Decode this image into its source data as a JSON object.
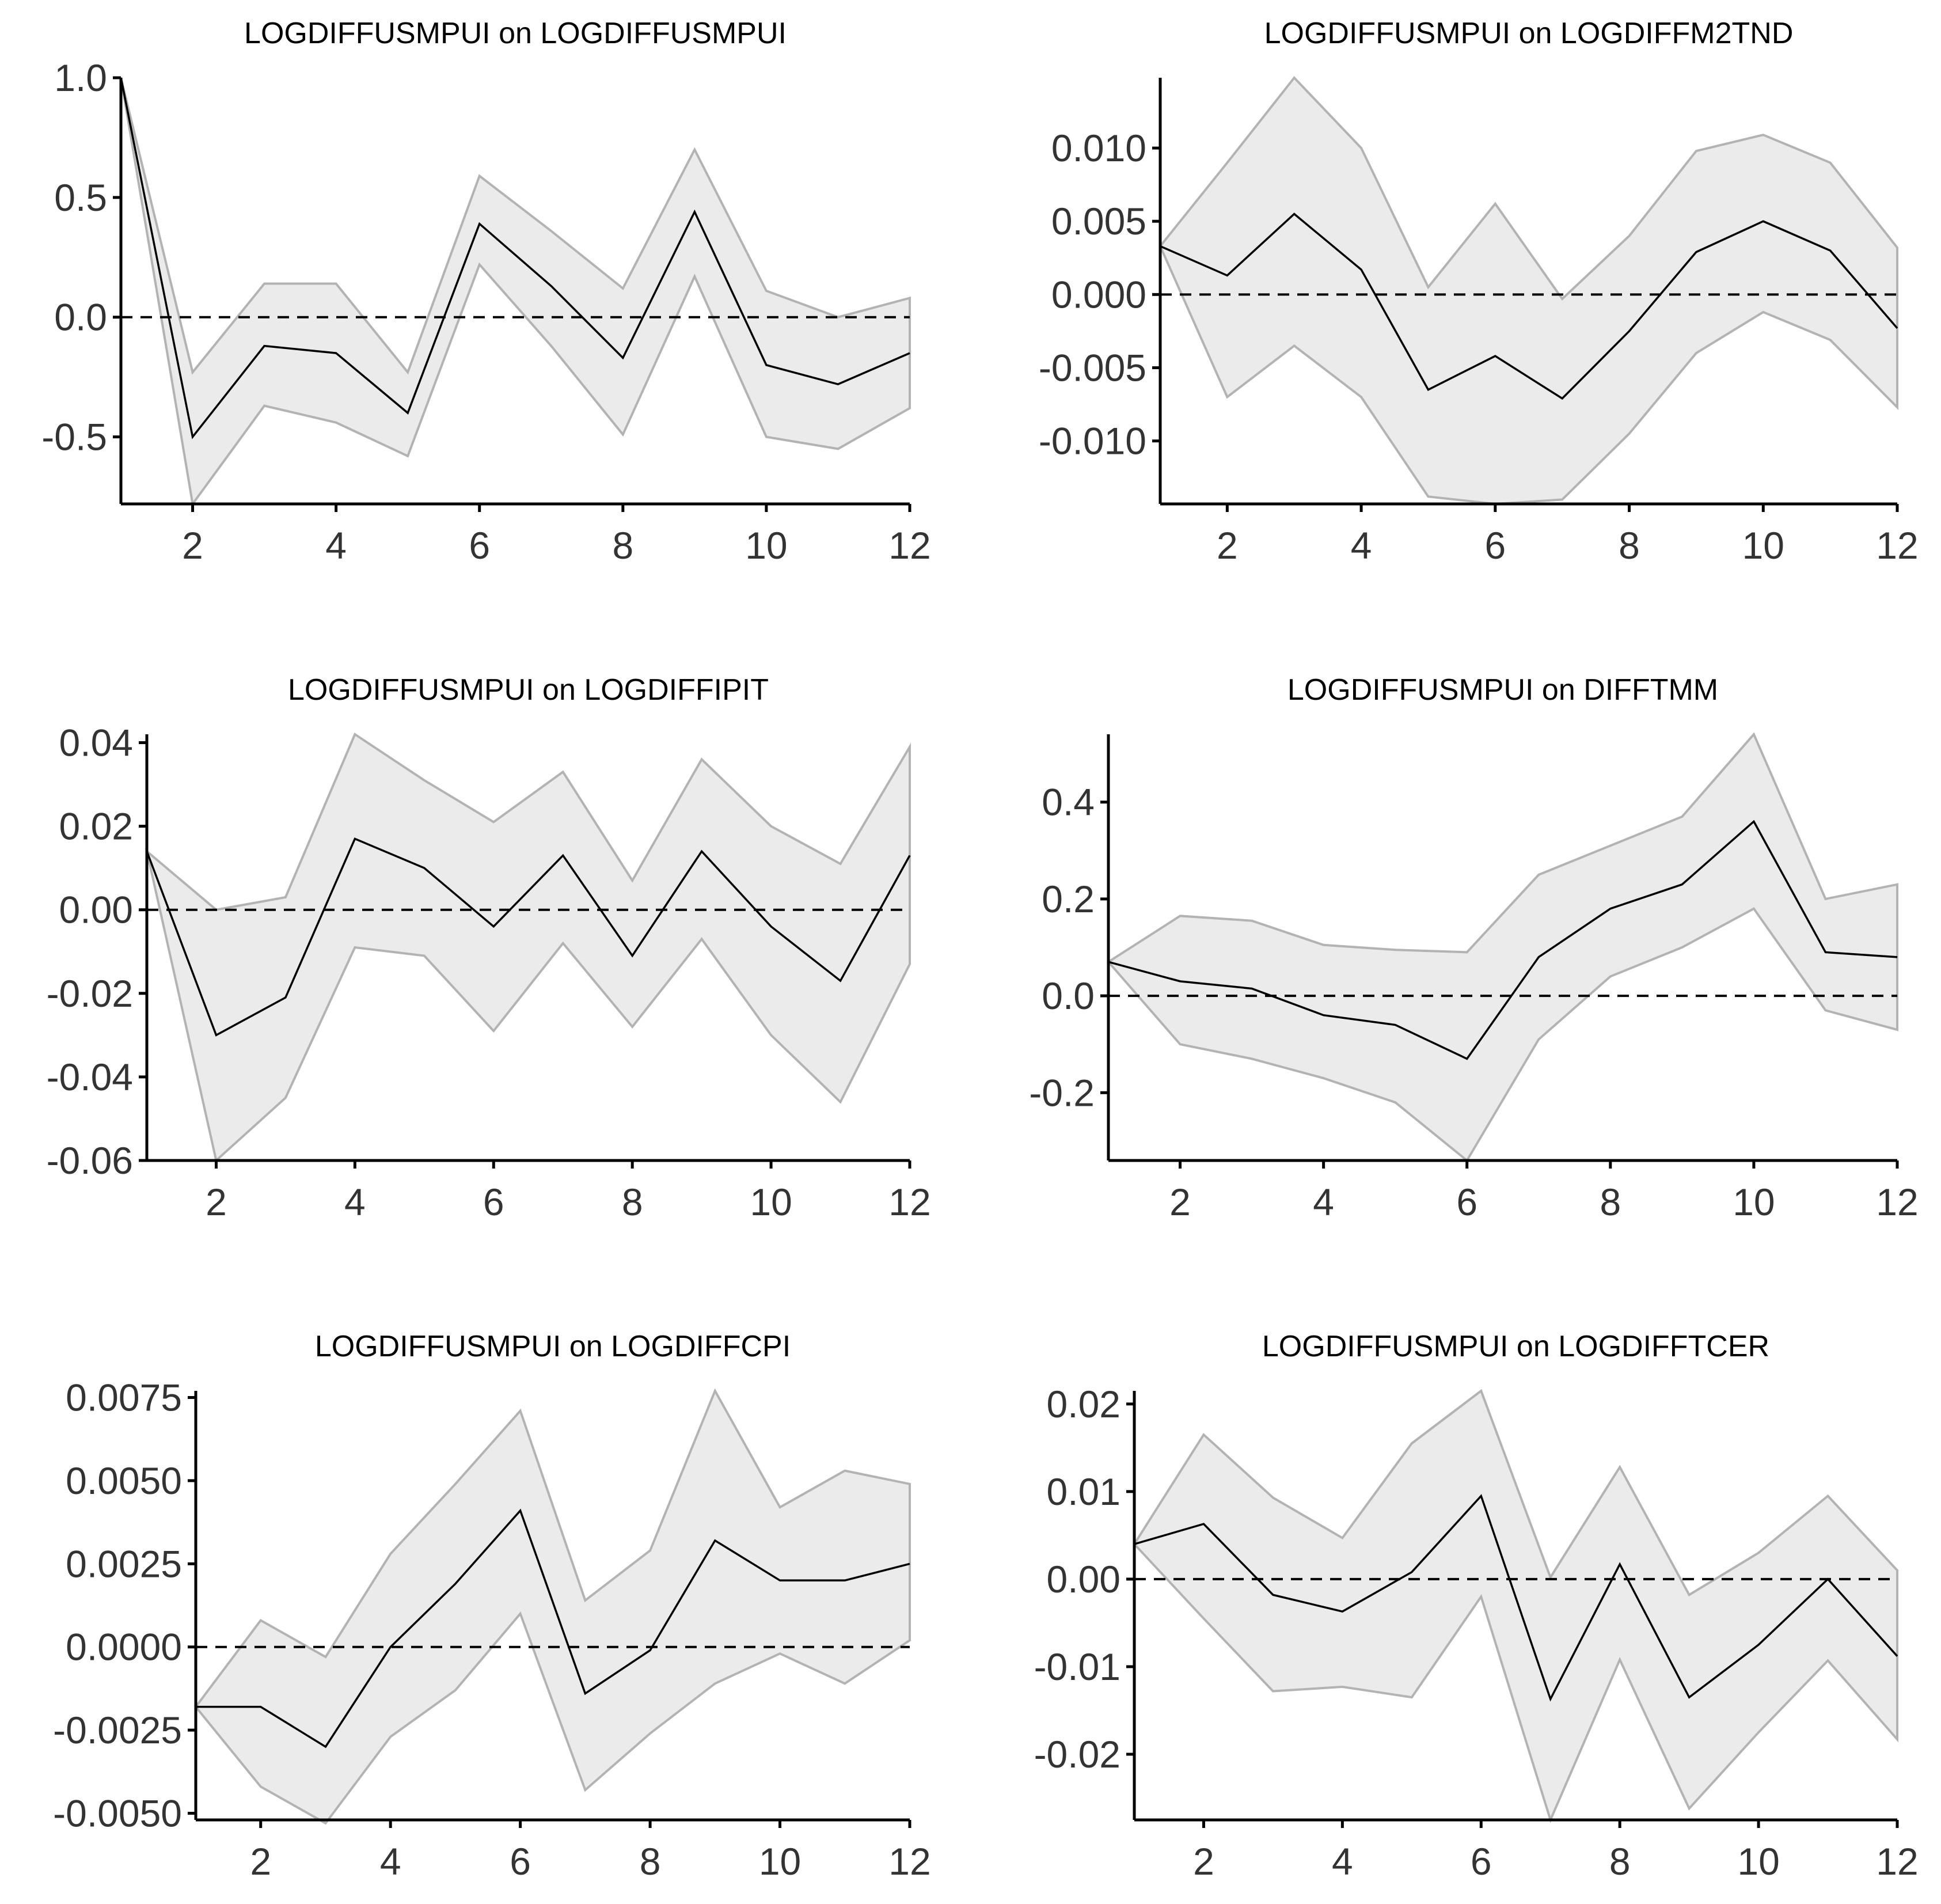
{
  "chart_data": [
    {
      "type": "line",
      "title": "LOGDIFFUSMPUI on LOGDIFFUSMPUI",
      "x": [
        1,
        2,
        3,
        4,
        5,
        6,
        7,
        8,
        9,
        10,
        11,
        12
      ],
      "xlim": [
        1,
        12
      ],
      "xticks": [
        2,
        4,
        6,
        8,
        10,
        12
      ],
      "xtick_labels": [
        "2",
        "4",
        "6",
        "8",
        "10",
        "12"
      ],
      "ylim": [
        -0.78,
        1.0
      ],
      "yticks": [
        1.0,
        0.5,
        0.0,
        -0.5
      ],
      "ytick_labels": [
        "1.0",
        "0.5",
        "0.0",
        "-0.5"
      ],
      "series": [
        {
          "name": "irf",
          "values": [
            1.0,
            -0.5,
            -0.12,
            -0.15,
            -0.4,
            0.39,
            0.13,
            -0.17,
            0.44,
            -0.2,
            -0.28,
            -0.15
          ]
        },
        {
          "name": "lower",
          "values": [
            1.0,
            -0.78,
            -0.37,
            -0.44,
            -0.58,
            0.22,
            -0.12,
            -0.49,
            0.17,
            -0.5,
            -0.55,
            -0.38
          ]
        },
        {
          "name": "upper",
          "values": [
            1.0,
            -0.23,
            0.14,
            0.14,
            -0.23,
            0.59,
            0.36,
            0.12,
            0.7,
            0.11,
            0.0,
            0.08
          ]
        }
      ]
    },
    {
      "type": "line",
      "title": "LOGDIFFUSMPUI on LOGDIFFM2TND",
      "x": [
        1,
        2,
        3,
        4,
        5,
        6,
        7,
        8,
        9,
        10,
        11,
        12
      ],
      "xlim": [
        1,
        12
      ],
      "xticks": [
        2,
        4,
        6,
        8,
        10,
        12
      ],
      "xtick_labels": [
        "2",
        "4",
        "6",
        "8",
        "10",
        "12"
      ],
      "ylim": [
        -0.0143,
        0.0148
      ],
      "yticks": [
        0.01,
        0.005,
        0.0,
        -0.005,
        -0.01
      ],
      "ytick_labels": [
        "0.010",
        "0.005",
        "0.000",
        "-0.005",
        "-0.010"
      ],
      "series": [
        {
          "name": "irf",
          "values": [
            0.0033,
            0.0013,
            0.0055,
            0.0017,
            -0.0065,
            -0.0042,
            -0.0071,
            -0.0025,
            0.0029,
            0.005,
            0.003,
            -0.0023
          ]
        },
        {
          "name": "lower",
          "values": [
            0.0033,
            -0.007,
            -0.0035,
            -0.007,
            -0.0138,
            -0.0143,
            -0.014,
            -0.0095,
            -0.004,
            -0.0012,
            -0.0031,
            -0.0077
          ]
        },
        {
          "name": "upper",
          "values": [
            0.0033,
            0.009,
            0.0148,
            0.01,
            0.0005,
            0.0062,
            -0.0003,
            0.004,
            0.0098,
            0.0109,
            0.009,
            0.0032
          ]
        }
      ]
    },
    {
      "type": "line",
      "title": "LOGDIFFUSMPUI on LOGDIFFIPIT",
      "x": [
        1,
        2,
        3,
        4,
        5,
        6,
        7,
        8,
        9,
        10,
        11,
        12
      ],
      "xlim": [
        1,
        12
      ],
      "xticks": [
        2,
        4,
        6,
        8,
        10,
        12
      ],
      "xtick_labels": [
        "2",
        "4",
        "6",
        "8",
        "10",
        "12"
      ],
      "ylim": [
        -0.06,
        0.042
      ],
      "yticks": [
        0.04,
        0.02,
        0.0,
        -0.02,
        -0.04,
        -0.06
      ],
      "ytick_labels": [
        "0.04",
        "0.02",
        "0.00",
        "-0.02",
        "-0.04",
        "-0.06"
      ],
      "series": [
        {
          "name": "irf",
          "values": [
            0.014,
            -0.03,
            -0.021,
            0.017,
            0.01,
            -0.004,
            0.013,
            -0.011,
            0.014,
            -0.004,
            -0.017,
            0.013
          ]
        },
        {
          "name": "lower",
          "values": [
            0.014,
            -0.06,
            -0.045,
            -0.009,
            -0.011,
            -0.029,
            -0.008,
            -0.028,
            -0.007,
            -0.03,
            -0.046,
            -0.013
          ]
        },
        {
          "name": "upper",
          "values": [
            0.014,
            0.0,
            0.003,
            0.042,
            0.031,
            0.021,
            0.033,
            0.007,
            0.036,
            0.02,
            0.011,
            0.039
          ]
        }
      ]
    },
    {
      "type": "line",
      "title": "LOGDIFFUSMPUI on DIFFTMM",
      "x": [
        1,
        2,
        3,
        4,
        5,
        6,
        7,
        8,
        9,
        10,
        11,
        12
      ],
      "xlim": [
        1,
        12
      ],
      "xticks": [
        2,
        4,
        6,
        8,
        10,
        12
      ],
      "xtick_labels": [
        "2",
        "4",
        "6",
        "8",
        "10",
        "12"
      ],
      "ylim": [
        -0.34,
        0.54
      ],
      "yticks": [
        0.4,
        0.2,
        0.0,
        -0.2
      ],
      "ytick_labels": [
        "0.4",
        "0.2",
        "0.0",
        "-0.2"
      ],
      "series": [
        {
          "name": "irf",
          "values": [
            0.07,
            0.03,
            0.015,
            -0.04,
            -0.06,
            -0.13,
            0.08,
            0.18,
            0.23,
            0.36,
            0.09,
            0.08
          ]
        },
        {
          "name": "lower",
          "values": [
            0.07,
            -0.1,
            -0.13,
            -0.17,
            -0.22,
            -0.34,
            -0.09,
            0.04,
            0.1,
            0.18,
            -0.03,
            -0.07
          ]
        },
        {
          "name": "upper",
          "values": [
            0.07,
            0.165,
            0.155,
            0.105,
            0.095,
            0.09,
            0.25,
            0.31,
            0.37,
            0.54,
            0.2,
            0.23
          ]
        }
      ]
    },
    {
      "type": "line",
      "title": "LOGDIFFUSMPUI on LOGDIFFCPI",
      "x": [
        1,
        2,
        3,
        4,
        5,
        6,
        7,
        8,
        9,
        10,
        11,
        12
      ],
      "xlim": [
        1,
        12
      ],
      "xticks": [
        2,
        4,
        6,
        8,
        10,
        12
      ],
      "xtick_labels": [
        "2",
        "4",
        "6",
        "8",
        "10",
        "12"
      ],
      "ylim": [
        -0.0052,
        0.0077
      ],
      "yticks": [
        0.0075,
        0.005,
        0.0025,
        0.0,
        -0.0025,
        -0.005
      ],
      "ytick_labels": [
        "0.0075",
        "0.0050",
        "0.0025",
        "0.0000",
        "-0.0025",
        "-0.0050"
      ],
      "series": [
        {
          "name": "irf",
          "values": [
            -0.0018,
            -0.0018,
            -0.003,
            0.0,
            0.0019,
            0.0041,
            -0.0014,
            -0.0001,
            0.0032,
            0.002,
            0.002,
            0.0025
          ]
        },
        {
          "name": "lower",
          "values": [
            -0.0018,
            -0.0042,
            -0.0053,
            -0.0027,
            -0.0013,
            0.001,
            -0.0043,
            -0.0026,
            -0.0011,
            -0.0002,
            -0.0011,
            0.0002
          ]
        },
        {
          "name": "upper",
          "values": [
            -0.0018,
            0.0008,
            -0.0003,
            0.0028,
            0.0049,
            0.0071,
            0.0014,
            0.0029,
            0.0077,
            0.0042,
            0.0053,
            0.0049
          ]
        }
      ]
    },
    {
      "type": "line",
      "title": "LOGDIFFUSMPUI on LOGDIFFTCER",
      "x": [
        1,
        2,
        3,
        4,
        5,
        6,
        7,
        8,
        9,
        10,
        11,
        12
      ],
      "xlim": [
        1,
        12
      ],
      "xticks": [
        2,
        4,
        6,
        8,
        10,
        12
      ],
      "xtick_labels": [
        "2",
        "4",
        "6",
        "8",
        "10",
        "12"
      ],
      "ylim": [
        -0.0275,
        0.0215
      ],
      "yticks": [
        0.02,
        0.01,
        0.0,
        -0.01,
        -0.02
      ],
      "ytick_labels": [
        "0.02",
        "0.01",
        "0.00",
        "-0.01",
        "-0.02"
      ],
      "series": [
        {
          "name": "irf",
          "values": [
            0.004,
            0.0063,
            -0.0018,
            -0.0037,
            0.0008,
            0.0095,
            -0.0137,
            0.0017,
            -0.0135,
            -0.0075,
            0.0,
            -0.0088
          ]
        },
        {
          "name": "lower",
          "values": [
            0.004,
            -0.0045,
            -0.0128,
            -0.0123,
            -0.0135,
            -0.002,
            -0.0275,
            -0.0092,
            -0.0262,
            -0.0175,
            -0.0093,
            -0.0183
          ]
        },
        {
          "name": "upper",
          "values": [
            0.004,
            0.0165,
            0.0093,
            0.0047,
            0.0155,
            0.0215,
            0.0002,
            0.0128,
            -0.0018,
            0.003,
            0.0095,
            0.001
          ]
        }
      ]
    }
  ]
}
